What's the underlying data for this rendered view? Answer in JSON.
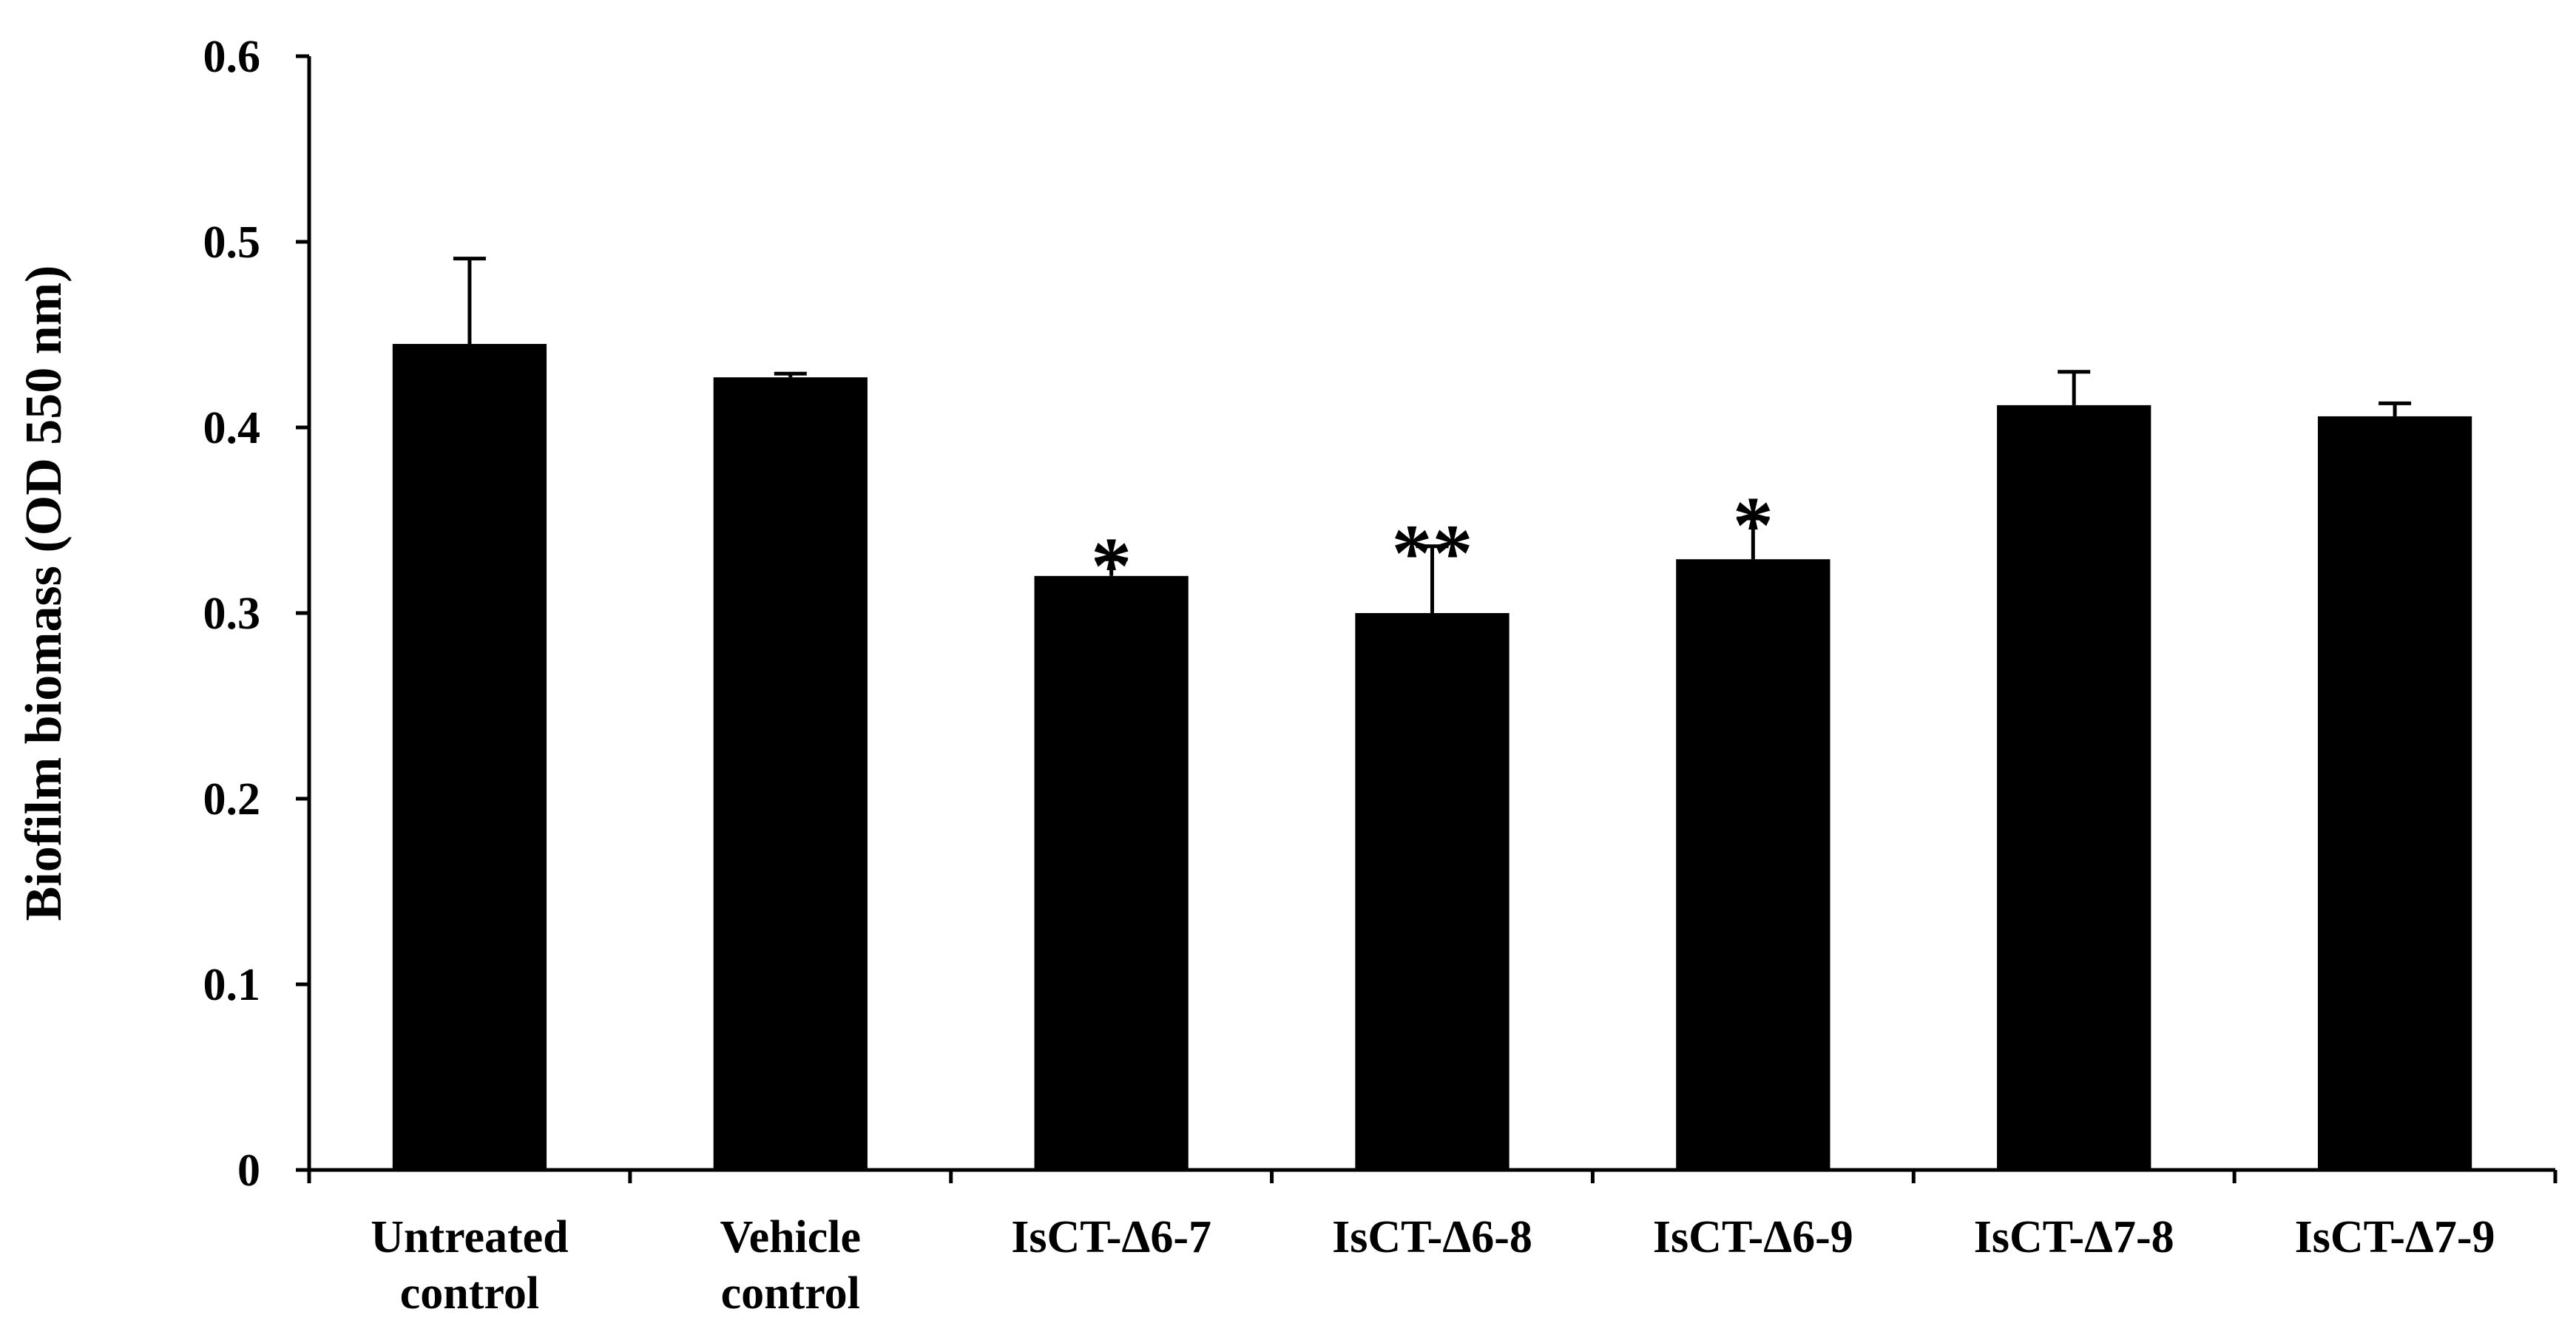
{
  "chart_data": {
    "type": "bar",
    "title": "",
    "xlabel": "",
    "ylabel": "Biofilm biomass (OD 550 nm)",
    "ylim": [
      0,
      0.6
    ],
    "yticks": [
      "0",
      "0.1",
      "0.2",
      "0.3",
      "0.4",
      "0.5",
      "0.6"
    ],
    "ytick_values": [
      0,
      0.1,
      0.2,
      0.3,
      0.4,
      0.5,
      0.6
    ],
    "categories": [
      [
        "Untreated",
        "control"
      ],
      [
        "Vehicle",
        "control"
      ],
      [
        "IsCT-Δ6-7"
      ],
      [
        "IsCT-Δ6-8"
      ],
      [
        "IsCT-Δ6-9"
      ],
      [
        "IsCT-Δ7-8"
      ],
      [
        "IsCT-Δ7-9"
      ]
    ],
    "values": [
      0.445,
      0.427,
      0.32,
      0.3,
      0.329,
      0.412,
      0.406
    ],
    "errors": [
      0.046,
      0.002,
      0.009,
      0.036,
      0.022,
      0.018,
      0.007
    ],
    "significance": [
      "",
      "",
      "*",
      "**",
      "*",
      "",
      ""
    ],
    "bar_color": "#000000",
    "grid": false,
    "legend": "none"
  }
}
